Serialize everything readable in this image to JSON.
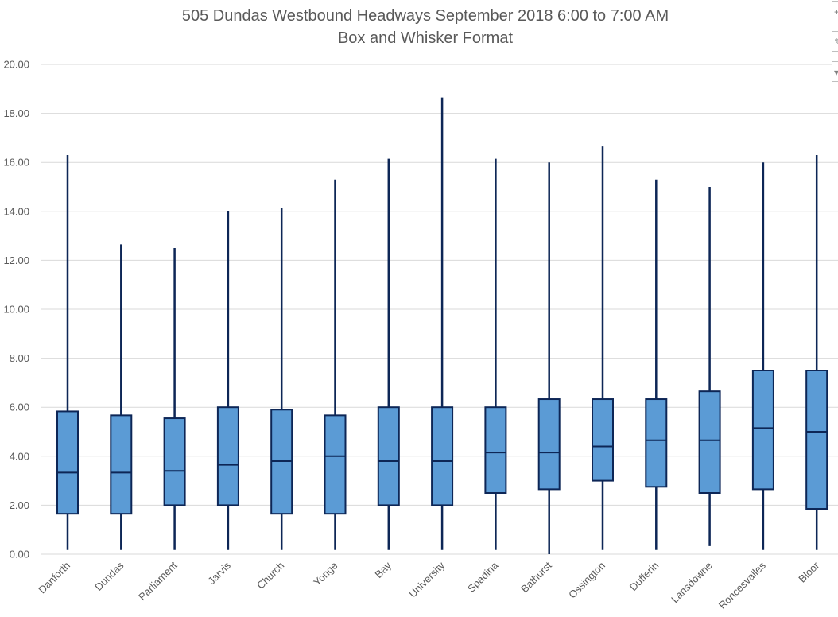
{
  "chart_data": {
    "type": "boxplot",
    "title": "505 Dundas Westbound Headways September 2018 6:00 to 7:00 AM",
    "subtitle": "Box and Whisker Format",
    "xlabel": "",
    "ylabel": "",
    "ylim": [
      0,
      20
    ],
    "ytick_step": 2,
    "ytick_labels": [
      "0.00",
      "2.00",
      "4.00",
      "6.00",
      "8.00",
      "10.00",
      "12.00",
      "14.00",
      "16.00",
      "18.00",
      "20.00"
    ],
    "grid": true,
    "categories": [
      "Danforth",
      "Dundas",
      "Parliament",
      "Jarvis",
      "Church",
      "Yonge",
      "Bay",
      "University",
      "Spadina",
      "Bathurst",
      "Ossington",
      "Dufferin",
      "Lansdowne",
      "Roncesvalles",
      "Bloor"
    ],
    "boxes": [
      {
        "min": 0.17,
        "q1": 1.65,
        "median": 3.33,
        "q3": 5.83,
        "max": 16.3
      },
      {
        "min": 0.17,
        "q1": 1.65,
        "median": 3.33,
        "q3": 5.67,
        "max": 12.65
      },
      {
        "min": 0.17,
        "q1": 2.0,
        "median": 3.4,
        "q3": 5.55,
        "max": 12.5
      },
      {
        "min": 0.17,
        "q1": 2.0,
        "median": 3.65,
        "q3": 6.0,
        "max": 14.0
      },
      {
        "min": 0.17,
        "q1": 1.65,
        "median": 3.8,
        "q3": 5.9,
        "max": 14.15
      },
      {
        "min": 0.17,
        "q1": 1.65,
        "median": 4.0,
        "q3": 5.67,
        "max": 15.3
      },
      {
        "min": 0.17,
        "q1": 2.0,
        "median": 3.8,
        "q3": 6.0,
        "max": 16.15
      },
      {
        "min": 0.17,
        "q1": 2.0,
        "median": 3.8,
        "q3": 6.0,
        "max": 18.65
      },
      {
        "min": 0.17,
        "q1": 2.5,
        "median": 4.15,
        "q3": 6.0,
        "max": 16.15
      },
      {
        "min": 0.0,
        "q1": 2.65,
        "median": 4.15,
        "q3": 6.33,
        "max": 16.0
      },
      {
        "min": 0.17,
        "q1": 3.0,
        "median": 4.4,
        "q3": 6.33,
        "max": 16.65
      },
      {
        "min": 0.17,
        "q1": 2.75,
        "median": 4.65,
        "q3": 6.33,
        "max": 15.3
      },
      {
        "min": 0.33,
        "q1": 2.5,
        "median": 4.65,
        "q3": 6.65,
        "max": 15.0
      },
      {
        "min": 0.17,
        "q1": 2.65,
        "median": 5.15,
        "q3": 7.5,
        "max": 16.0
      },
      {
        "min": 0.17,
        "q1": 1.85,
        "median": 5.0,
        "q3": 7.5,
        "max": 16.3
      }
    ],
    "colors": {
      "box_fill": "#5b9bd5",
      "box_stroke": "#0d2656",
      "whisker": "#0d2656",
      "grid": "#d9d9d9",
      "text": "#595959"
    }
  },
  "chart_controls": [
    {
      "icon": "plus-icon",
      "label": "+"
    },
    {
      "icon": "brush-icon",
      "label": "✎"
    },
    {
      "icon": "filter-icon",
      "label": "▾"
    }
  ]
}
